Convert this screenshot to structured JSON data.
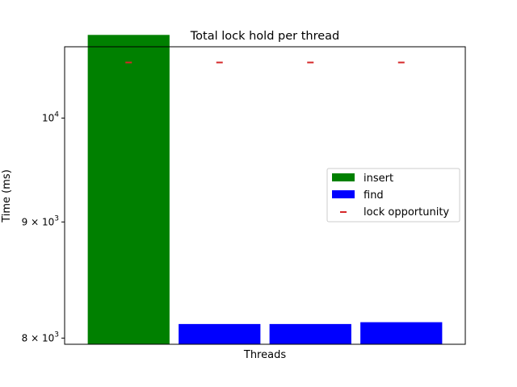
{
  "colors": {
    "insert": "#008000",
    "find": "#0000ff",
    "lock_opportunity": "#d62728"
  },
  "chart_data": {
    "type": "bar",
    "title": "Total lock hold per thread",
    "xlabel": "Threads",
    "ylabel": "Time (ms)",
    "yscale": "log",
    "ylim": [
      7950,
      10750
    ],
    "yticks": [
      {
        "value": 8000,
        "label": "8 × 10",
        "exp": "3"
      },
      {
        "value": 9000,
        "label": "9 × 10",
        "exp": "3"
      },
      {
        "value": 10000,
        "label": "10",
        "exp": "4"
      }
    ],
    "categories": [
      "",
      "",
      "",
      ""
    ],
    "series": [
      {
        "name": "insert",
        "kind": "bar",
        "color": "#008000",
        "values": [
          10880,
          null,
          null,
          null
        ]
      },
      {
        "name": "find",
        "kind": "bar",
        "color": "#0000ff",
        "values": [
          null,
          8115,
          8115,
          8130
        ]
      },
      {
        "name": "lock opportunity",
        "kind": "marker",
        "color": "#d62728",
        "values": [
          10580,
          10580,
          10580,
          10580
        ]
      }
    ],
    "legend": {
      "position": "center-right",
      "entries": [
        "insert",
        "find",
        "lock opportunity"
      ]
    },
    "grid": false
  }
}
